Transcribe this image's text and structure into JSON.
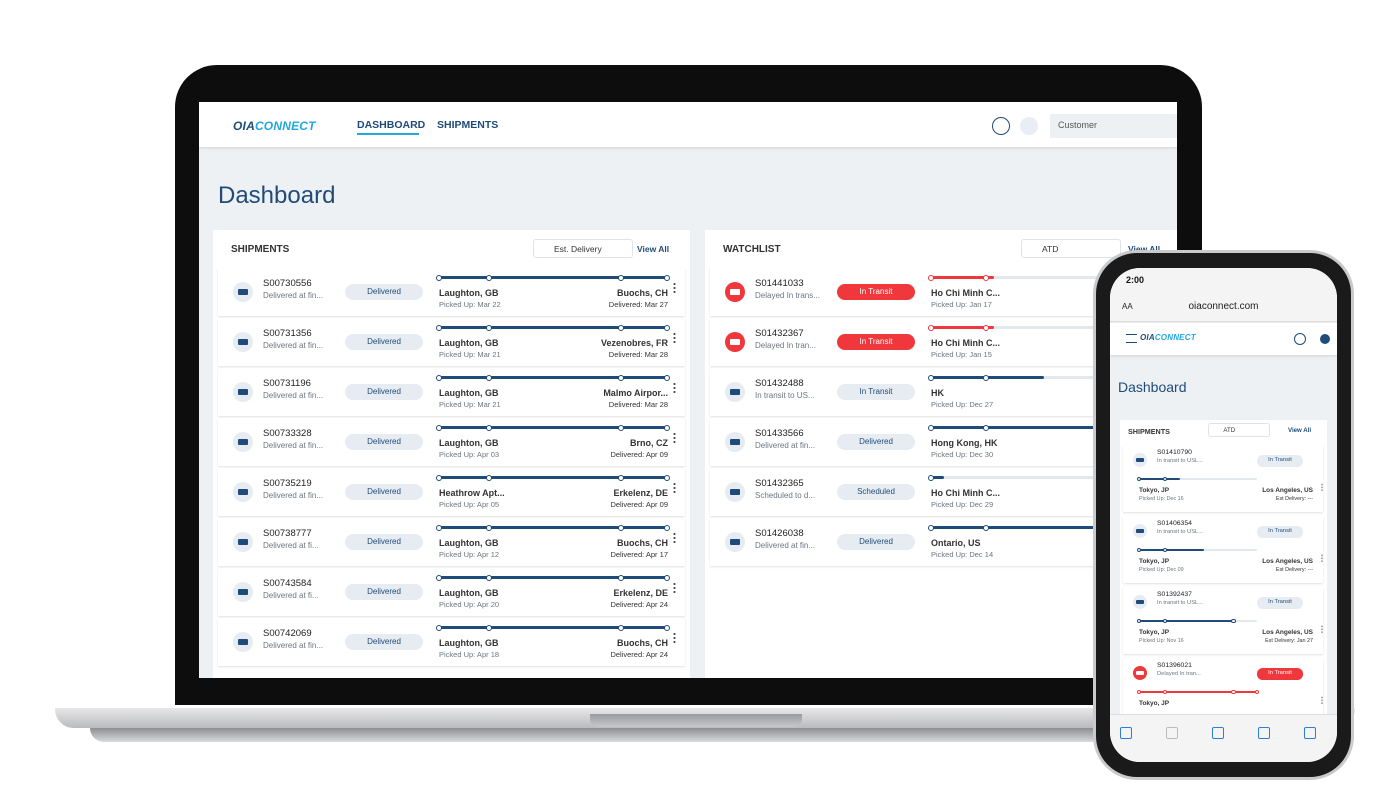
{
  "laptop": {
    "nav": {
      "logo": [
        "OIA",
        "CONNECT"
      ],
      "tabs": [
        "DASHBOARD",
        "SHIPMENTS"
      ],
      "account": "Customer"
    },
    "title": "Dashboard",
    "shipments": {
      "title": "SHIPMENTS",
      "sort": "Est. Delivery",
      "view_all": "View All",
      "rows": [
        {
          "id": "S00730556",
          "status": "Delivered at fin...",
          "badge": "Delivered",
          "badge_color": "#e6ecf1",
          "badge_text_color": "#1f4b7a",
          "origin": "Laughton, GB",
          "dest": "Buochs, CH",
          "picked": "Picked Up: Mar 22",
          "delivered": "Delivered: Mar 27"
        },
        {
          "id": "S00731356",
          "status": "Delivered at fin...",
          "badge": "Delivered",
          "badge_color": "#e6ecf1",
          "badge_text_color": "#1f4b7a",
          "origin": "Laughton, GB",
          "dest": "Vezenobres, FR",
          "picked": "Picked Up: Mar 21",
          "delivered": "Delivered: Mar 28"
        },
        {
          "id": "S00731196",
          "status": "Delivered at fin...",
          "badge": "Delivered",
          "badge_color": "#e6ecf1",
          "badge_text_color": "#1f4b7a",
          "origin": "Laughton, GB",
          "dest": "Malmo Airpor...",
          "picked": "Picked Up: Mar 21",
          "delivered": "Delivered: Mar 28"
        },
        {
          "id": "S00733328",
          "status": "Delivered at fin...",
          "badge": "Delivered",
          "badge_color": "#e6ecf1",
          "badge_text_color": "#1f4b7a",
          "origin": "Laughton, GB",
          "dest": "Brno, CZ",
          "picked": "Picked Up: Apr 03",
          "delivered": "Delivered: Apr 09"
        },
        {
          "id": "S00735219",
          "status": "Delivered at fin...",
          "badge": "Delivered",
          "badge_color": "#e6ecf1",
          "badge_text_color": "#1f4b7a",
          "origin": "Heathrow Apt...",
          "dest": "Erkelenz, DE",
          "picked": "Picked Up: Apr 05",
          "delivered": "Delivered: Apr 09"
        },
        {
          "id": "S00738777",
          "status": "Delivered at fi...",
          "badge": "Delivered",
          "badge_color": "#e6ecf1",
          "badge_text_color": "#1f4b7a",
          "origin": "Laughton, GB",
          "dest": "Buochs, CH",
          "picked": "Picked Up: Apr 12",
          "delivered": "Delivered: Apr 17"
        },
        {
          "id": "S00743584",
          "status": "Delivered at fi...",
          "badge": "Delivered",
          "badge_color": "#e6ecf1",
          "badge_text_color": "#1f4b7a",
          "origin": "Laughton, GB",
          "dest": "Erkelenz, DE",
          "picked": "Picked Up: Apr 20",
          "delivered": "Delivered: Apr 24"
        },
        {
          "id": "S00742069",
          "status": "Delivered at fin...",
          "badge": "Delivered",
          "badge_color": "#e6ecf1",
          "badge_text_color": "#1f4b7a",
          "origin": "Laughton, GB",
          "dest": "Buochs, CH",
          "picked": "Picked Up: Apr 18",
          "delivered": "Delivered: Apr 24"
        }
      ]
    },
    "watchlist": {
      "title": "WATCHLIST",
      "sort": "ATD",
      "view_all": "View All",
      "rows": [
        {
          "id": "S01441033",
          "status": "Delayed In trans...",
          "badge": "In Transit",
          "badge_color": "#f0373c",
          "badge_text_color": "#ffffff",
          "origin": "Ho Chi Minh C...",
          "picked": "Picked Up: Jan 17"
        },
        {
          "id": "S01432367",
          "status": "Delayed In tran...",
          "badge": "In Transit",
          "badge_color": "#f0373c",
          "badge_text_color": "#ffffff",
          "origin": "Ho Chi Minh C...",
          "picked": "Picked Up: Jan 15"
        },
        {
          "id": "S01432488",
          "status": "In transit to US...",
          "badge": "In Transit",
          "badge_color": "#e6ecf1",
          "badge_text_color": "#1f4b7a",
          "origin": "HK",
          "picked": "Picked Up: Dec 27"
        },
        {
          "id": "S01433566",
          "status": "Delivered at fin...",
          "badge": "Delivered",
          "badge_color": "#e6ecf1",
          "badge_text_color": "#1f4b7a",
          "origin": "Hong Kong, HK",
          "picked": "Picked Up: Dec 30"
        },
        {
          "id": "S01432365",
          "status": "Scheduled to d...",
          "badge": "Scheduled",
          "badge_color": "#e6ecf1",
          "badge_text_color": "#1f4b7a",
          "origin": "Ho Chi Minh C...",
          "picked": "Picked Up: Dec 29"
        },
        {
          "id": "S01426038",
          "status": "Delivered at fin...",
          "badge": "Delivered",
          "badge_color": "#e6ecf1",
          "badge_text_color": "#1f4b7a",
          "origin": "Ontario, US",
          "picked": "Picked Up: Dec 14"
        }
      ]
    }
  },
  "phone": {
    "time": "2:00",
    "text_size": "AA",
    "url": "oiaconnect.com",
    "logo": [
      "OIA",
      "CONNECT"
    ],
    "title": "Dashboard",
    "shipments": {
      "title": "SHIPMENTS",
      "sort": "ATD",
      "view_all": "View All",
      "rows": [
        {
          "id": "S01410790",
          "status": "In transit to USL...",
          "badge": "In Transit",
          "badge_color": "#e6ecf1",
          "badge_text_color": "#1f4b7a",
          "origin": "Tokyo, JP",
          "dest": "Los Angeles, US",
          "picked": "Picked Up: Dec 16",
          "est": "Est Delivery: ---"
        },
        {
          "id": "S01406354",
          "status": "In transit to USL...",
          "badge": "In Transit",
          "badge_color": "#e6ecf1",
          "badge_text_color": "#1f4b7a",
          "origin": "Tokyo, JP",
          "dest": "Los Angeles, US",
          "picked": "Picked Up: Dec 09",
          "est": "Est Delivery: ---"
        },
        {
          "id": "S01392437",
          "status": "In transit to USL...",
          "badge": "In Transit",
          "badge_color": "#e6ecf1",
          "badge_text_color": "#1f4b7a",
          "origin": "Tokyo, JP",
          "dest": "Los Angeles, US",
          "picked": "Picked Up: Nov 16",
          "est": "Est Delivery: Jan 27"
        },
        {
          "id": "S01396021",
          "status": "Delayed In tran...",
          "badge": "In Transit",
          "badge_color": "#f0373c",
          "badge_text_color": "#ffffff",
          "origin": "Tokyo, JP"
        }
      ]
    }
  }
}
